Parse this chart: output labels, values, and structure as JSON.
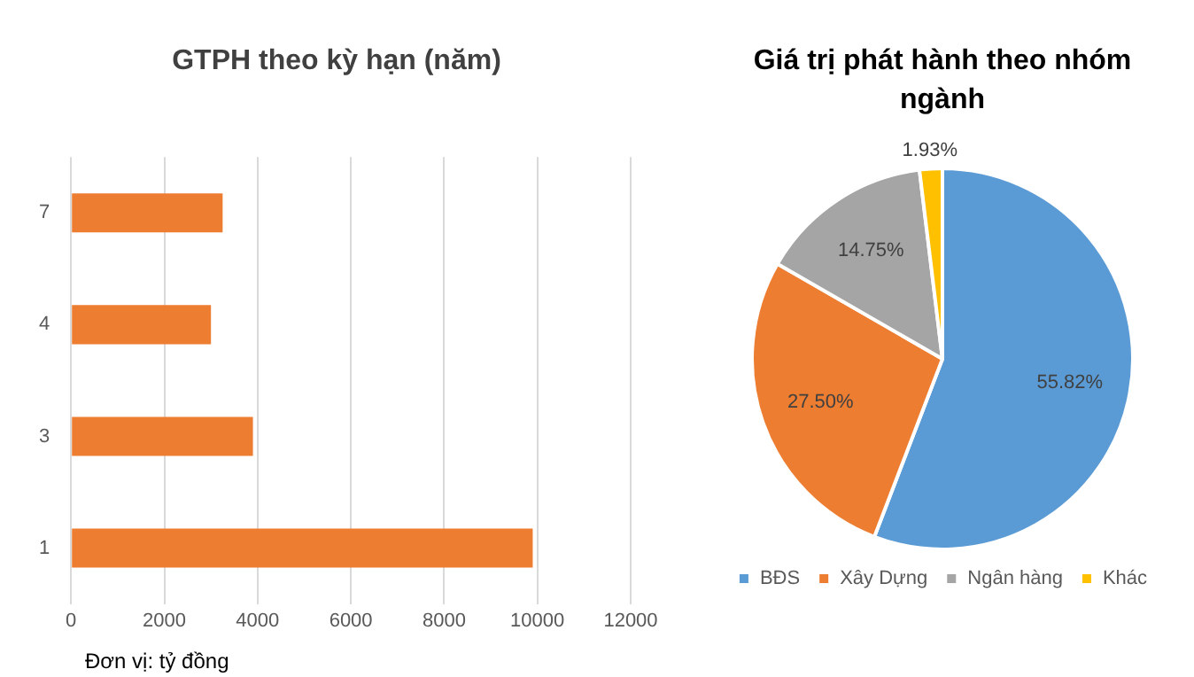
{
  "chart_data": [
    {
      "type": "bar",
      "title": "GTPH theo kỳ hạn (năm)",
      "orientation": "horizontal",
      "categories": [
        "7",
        "4",
        "3",
        "1"
      ],
      "values": [
        3250,
        3000,
        3900,
        9900
      ],
      "color": "#ed7d31",
      "xlim": [
        0,
        12000
      ],
      "xticks": [
        0,
        2000,
        4000,
        6000,
        8000,
        10000,
        12000
      ],
      "grid": "x",
      "legend": false,
      "annotations": [
        "Đơn vị: tỷ đồng"
      ]
    },
    {
      "type": "pie",
      "title": "Giá trị phát hành theo nhóm ngành",
      "categories": [
        "BĐS",
        "Xây Dựng",
        "Ngân hàng",
        "Khác"
      ],
      "values": [
        55.82,
        27.5,
        14.75,
        1.93
      ],
      "colors": [
        "#5b9bd5",
        "#ed7d31",
        "#a5a5a5",
        "#ffc000"
      ],
      "value_labels": [
        "55.82%",
        "27.50%",
        "14.75%",
        "1.93%"
      ],
      "legend": "bottom"
    }
  ]
}
